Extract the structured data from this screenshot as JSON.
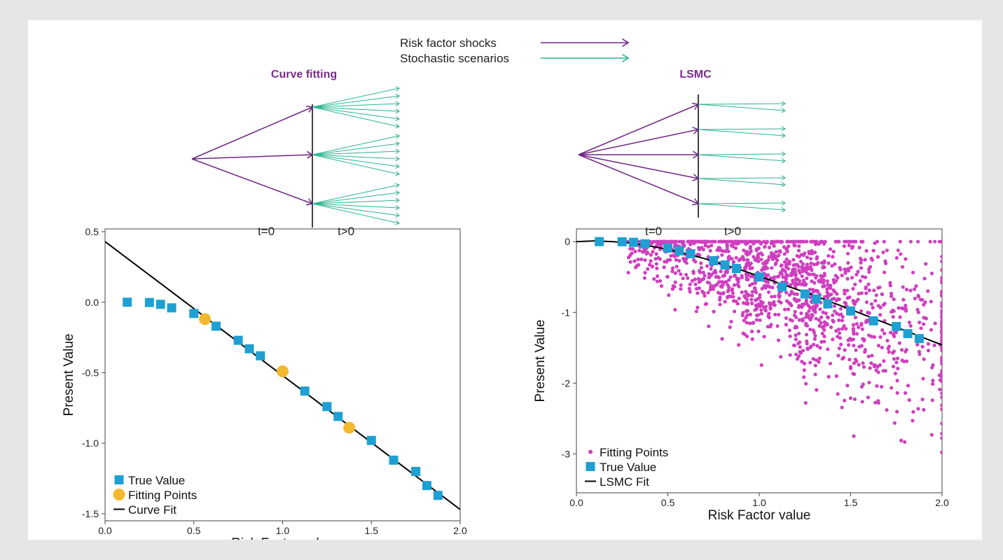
{
  "legend_top": {
    "shocks_label": "Risk factor shocks",
    "scenarios_label": "Stochastic scenarios",
    "shocks_color": "#6e2585",
    "scenarios_color": "#2bb38f"
  },
  "diagrams": {
    "left_title": "Curve fitting",
    "right_title": "LSMC",
    "title_color": "#7b2a91",
    "t0_label": "t=0",
    "t1_label": "t>0",
    "left_shocks": 3,
    "left_scenarios_per_shock": 6,
    "right_shocks": 5,
    "right_scenarios_per_shock": 2
  },
  "chart_data": [
    {
      "type": "scatter",
      "title": "",
      "xlabel": "Risk Factor value",
      "ylabel": "Present Value",
      "xlim": [
        0,
        2.0
      ],
      "ylim": [
        -1.55,
        0.52
      ],
      "xticks": [
        "0.0",
        "0.5",
        "1.0",
        "1.5",
        "2.0"
      ],
      "yticks": [
        "0.5",
        "0.0",
        "-0.5",
        "-1.0",
        "-1.5"
      ],
      "ytick_values": [
        0.5,
        0.0,
        -0.5,
        -1.0,
        -1.5
      ],
      "legend_position": "bottom-left",
      "series": [
        {
          "name": "True Value",
          "marker": "square",
          "color": "#1ea0d2",
          "x": [
            0.125,
            0.25,
            0.3125,
            0.375,
            0.5,
            0.625,
            0.75,
            0.8125,
            0.875,
            1.125,
            1.25,
            1.3125,
            1.5,
            1.625,
            1.75,
            1.8125,
            1.875
          ],
          "y": [
            0.0,
            -0.002,
            -0.015,
            -0.04,
            -0.08,
            -0.17,
            -0.27,
            -0.33,
            -0.38,
            -0.63,
            -0.74,
            -0.81,
            -0.98,
            -1.12,
            -1.2,
            -1.3,
            -1.37
          ]
        },
        {
          "name": "Fitting Points",
          "marker": "circle",
          "color": "#f4b82e",
          "x": [
            0.5625,
            1.0,
            1.375
          ],
          "y": [
            -0.12,
            -0.49,
            -0.89
          ]
        },
        {
          "name": "Curve Fit",
          "type": "line",
          "color": "#000000",
          "x": [
            0.0,
            2.0
          ],
          "y": [
            0.43,
            -1.47
          ]
        }
      ]
    },
    {
      "type": "scatter",
      "title": "",
      "xlabel": "Risk Factor value",
      "ylabel": "Present Value",
      "xlim": [
        0,
        2.0
      ],
      "ylim": [
        -3.55,
        0.18
      ],
      "xticks": [
        "0.0",
        "0.5",
        "1.0",
        "1.5",
        "2.0"
      ],
      "yticks": [
        "0",
        "-1",
        "-2",
        "-3"
      ],
      "ytick_values": [
        0,
        -1,
        -2,
        -3
      ],
      "legend_position": "bottom-left",
      "series": [
        {
          "name": "Fitting Points",
          "marker": "dot",
          "color": "#cf3fbf",
          "count": 1500,
          "description_of_spread": "spread increasing with risk factor below the LSMC fit"
        },
        {
          "name": "True Value",
          "marker": "square",
          "color": "#1ea0d2",
          "x": [
            0.125,
            0.25,
            0.3125,
            0.375,
            0.5,
            0.5625,
            0.625,
            0.75,
            0.8125,
            0.875,
            1.0,
            1.125,
            1.25,
            1.3125,
            1.375,
            1.5,
            1.625,
            1.75,
            1.8125,
            1.875
          ],
          "y": [
            0.0,
            -0.002,
            -0.01,
            -0.03,
            -0.09,
            -0.13,
            -0.17,
            -0.27,
            -0.33,
            -0.38,
            -0.5,
            -0.64,
            -0.74,
            -0.81,
            -0.88,
            -0.98,
            -1.12,
            -1.2,
            -1.3,
            -1.37
          ]
        },
        {
          "name": "LSMC Fit",
          "type": "line",
          "color": "#000000",
          "x": [
            0.0,
            0.1,
            0.2,
            0.3,
            0.4,
            0.5,
            0.6,
            0.7,
            0.8,
            0.9,
            1.0,
            1.1,
            1.2,
            1.3,
            1.4,
            1.5,
            1.6,
            1.7,
            1.8,
            1.9,
            2.0
          ],
          "y": [
            0.0,
            0.01,
            0.0,
            -0.02,
            -0.06,
            -0.11,
            -0.17,
            -0.24,
            -0.32,
            -0.4,
            -0.49,
            -0.58,
            -0.67,
            -0.76,
            -0.86,
            -0.96,
            -1.06,
            -1.16,
            -1.26,
            -1.36,
            -1.46
          ]
        }
      ]
    }
  ]
}
